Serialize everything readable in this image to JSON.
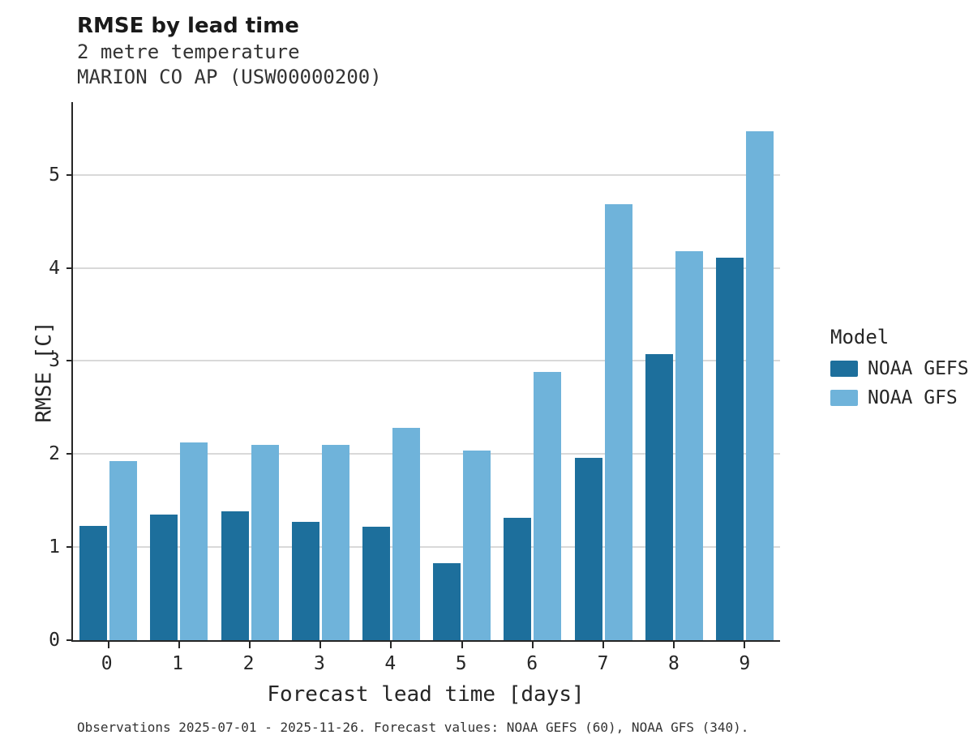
{
  "header": {
    "title": "RMSE by lead time",
    "subtitle1": "2 metre temperature",
    "subtitle2": "MARION CO AP (USW00000200)"
  },
  "legend": {
    "title": "Model"
  },
  "footer": {
    "caption": "Observations 2025-07-01 - 2025-11-26. Forecast values: NOAA GEFS (60), NOAA GFS (340)."
  },
  "chart_data": {
    "type": "bar",
    "title": "RMSE by lead time",
    "subtitle": "2 metre temperature",
    "station": "MARION CO AP (USW00000200)",
    "xlabel": "Forecast lead time [days]",
    "ylabel": "RMSE [C]",
    "categories": [
      "0",
      "1",
      "2",
      "3",
      "4",
      "5",
      "6",
      "7",
      "8",
      "9"
    ],
    "series": [
      {
        "name": "NOAA GEFS",
        "color": "#1d6f9c",
        "values": [
          1.23,
          1.35,
          1.38,
          1.27,
          1.22,
          0.83,
          1.31,
          1.96,
          3.07,
          4.11
        ]
      },
      {
        "name": "NOAA GFS",
        "color": "#6fb3da",
        "values": [
          1.92,
          2.12,
          2.1,
          2.1,
          2.28,
          2.04,
          2.88,
          4.68,
          4.18,
          5.47
        ]
      }
    ],
    "ylim": [
      0,
      5.8
    ],
    "yticks": [
      0,
      1,
      2,
      3,
      4,
      5
    ],
    "grid": "horizontal",
    "legend_position": "right",
    "legend_title": "Model"
  }
}
